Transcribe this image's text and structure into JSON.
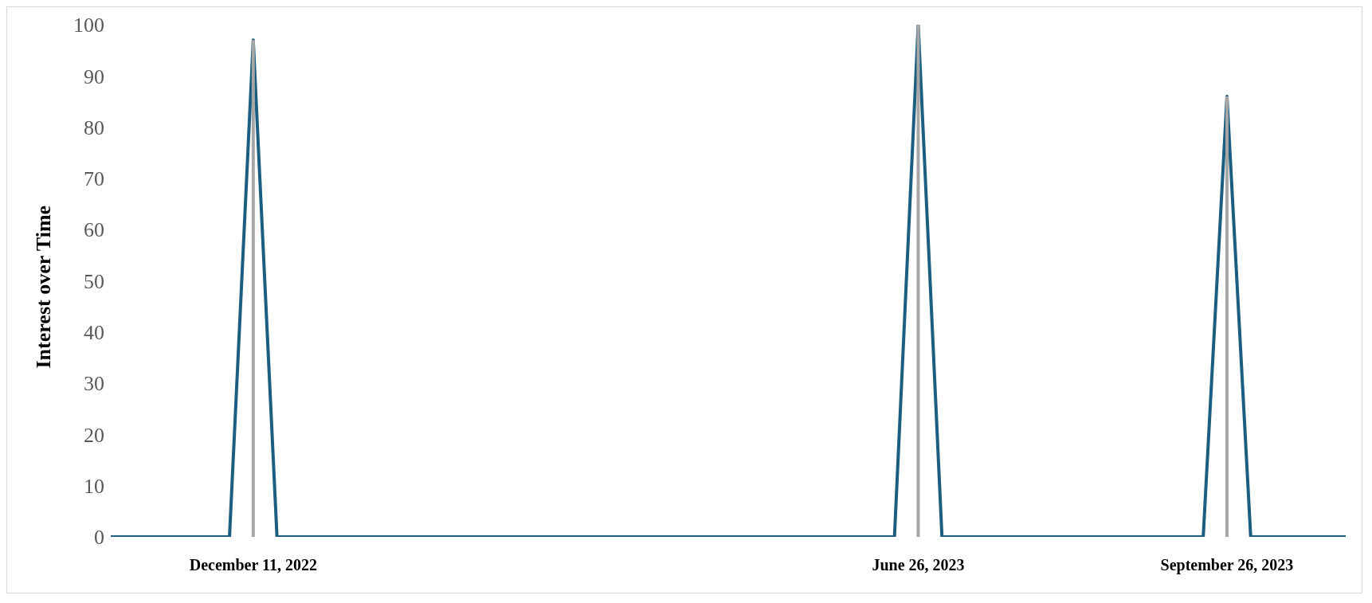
{
  "chart_data": {
    "type": "line",
    "ylabel": "Interest over Time",
    "categories": [
      null,
      null,
      null,
      null,
      null,
      null,
      "December 11, 2022",
      null,
      null,
      null,
      null,
      null,
      null,
      null,
      null,
      null,
      null,
      null,
      null,
      null,
      null,
      null,
      null,
      null,
      null,
      null,
      null,
      null,
      null,
      null,
      null,
      null,
      null,
      null,
      "June 26, 2023",
      null,
      null,
      null,
      null,
      null,
      null,
      null,
      null,
      null,
      null,
      null,
      null,
      "September 26, 2023",
      null,
      null,
      null,
      null,
      null
    ],
    "series": [
      {
        "color": "#1b5e7f",
        "values": [
          0,
          0,
          0,
          0,
          0,
          0,
          97,
          0,
          0,
          0,
          0,
          0,
          0,
          0,
          0,
          0,
          0,
          0,
          0,
          0,
          0,
          0,
          0,
          0,
          0,
          0,
          0,
          0,
          0,
          0,
          0,
          0,
          0,
          0,
          100,
          0,
          0,
          0,
          0,
          0,
          0,
          0,
          0,
          0,
          0,
          0,
          0,
          86,
          0,
          0,
          0,
          0,
          0
        ]
      }
    ],
    "ref_lines": [
      {
        "axis": "x",
        "value": "December 11, 2022",
        "color": "#a6a6a6"
      },
      {
        "axis": "x",
        "value": "June 26, 2023",
        "color": "#a6a6a6"
      },
      {
        "axis": "x",
        "value": "September 26, 2023",
        "color": "#a6a6a6"
      }
    ],
    "ylim": [
      0,
      100
    ],
    "yticks": [
      0,
      10,
      20,
      30,
      40,
      50,
      60,
      70,
      80,
      90,
      100
    ],
    "grid": false,
    "legend": false,
    "marker": "none",
    "line_style": "solid"
  }
}
